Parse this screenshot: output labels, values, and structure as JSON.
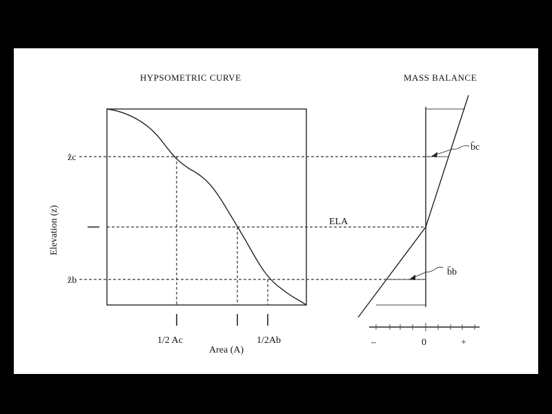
{
  "hypsometric": {
    "title": "HYPSOMETRIC CURVE",
    "y_axis_label": "Elevation (z)",
    "x_axis_label": "Area (A)",
    "z_c_label": "z̄c",
    "z_b_label": "z̄b",
    "half_ac_label": "1/2 Ac",
    "half_ab_label": "1/2Ab"
  },
  "mass_balance": {
    "title": "MASS BALANCE",
    "ela_label": "ELA",
    "b_c_label": "b̄c",
    "b_b_label": "b̄b",
    "scale_minus": "–",
    "scale_zero": "0",
    "scale_plus": "+"
  }
}
